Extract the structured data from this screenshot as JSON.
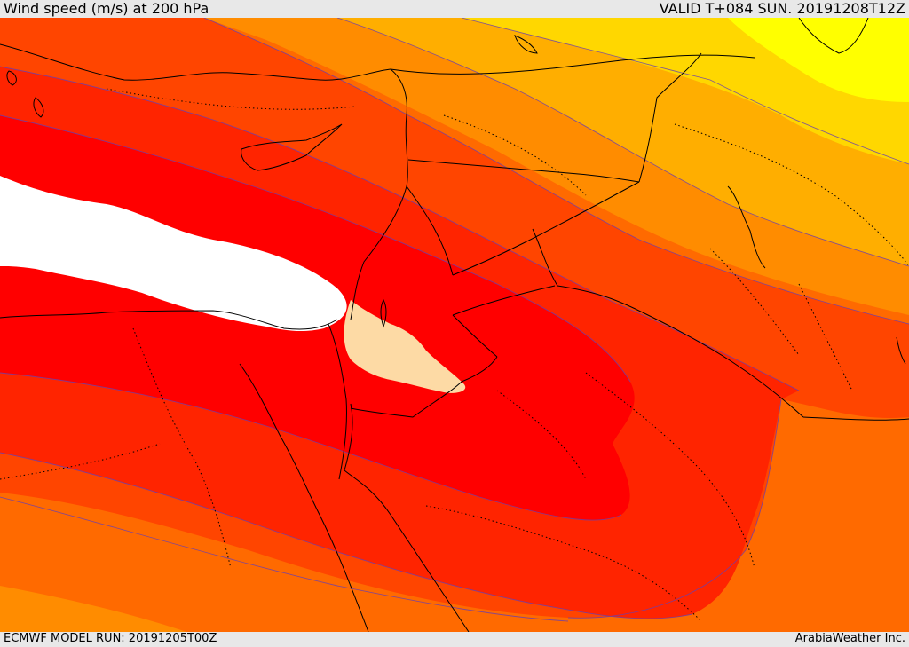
{
  "header": {
    "title": "Wind speed (m/s) at 200 hPa",
    "valid": "VALID T+084 SUN. 20191208T12Z"
  },
  "footer": {
    "model_run": "ECMWF MODEL RUN: 20191205T00Z",
    "provider": "ArabiaWeather Inc."
  },
  "map": {
    "field": "wind speed at 200 hPa",
    "palette": {
      "band_1": "#ffff00",
      "band_2": "#ffd700",
      "band_3": "#ffae00",
      "band_4": "#ff8c00",
      "band_5": "#ff6a00",
      "band_6": "#ff4500",
      "band_7": "#ff2400",
      "band_8": "#ff0000",
      "band_9": "#ffffff",
      "band_10": "#fddaa5"
    }
  }
}
